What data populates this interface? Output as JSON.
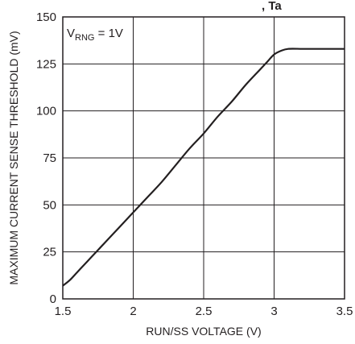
{
  "chart_data": {
    "type": "line",
    "partial_title": ", Ta",
    "xlabel": "RUN/SS VOLTAGE (V)",
    "ylabel": "MAXIMUM CURRENT SENSE THRESHOLD (mV)",
    "xlim": [
      1.5,
      3.5
    ],
    "ylim": [
      0,
      150
    ],
    "x_ticks": [
      "1.5",
      "2",
      "2.5",
      "3",
      "3.5"
    ],
    "y_ticks": [
      "0",
      "25",
      "50",
      "75",
      "100",
      "125",
      "150"
    ],
    "grid": true,
    "annotation": {
      "main": "V",
      "sub": "RNG",
      "rest": " = 1V"
    },
    "series": [
      {
        "color": "#231f20",
        "x": [
          1.5,
          1.55,
          1.6,
          1.65,
          1.7,
          1.75,
          1.8,
          1.9,
          2.0,
          2.1,
          2.2,
          2.3,
          2.4,
          2.5,
          2.6,
          2.7,
          2.8,
          2.9,
          2.95,
          3.0,
          3.05,
          3.1,
          3.2,
          3.3,
          3.4,
          3.5
        ],
        "y": [
          7,
          10,
          14,
          18,
          22,
          26,
          30,
          38,
          46,
          54,
          62,
          71,
          80,
          88,
          97,
          105,
          114,
          122,
          126,
          130,
          132,
          133,
          133,
          133,
          133,
          133
        ]
      }
    ]
  }
}
